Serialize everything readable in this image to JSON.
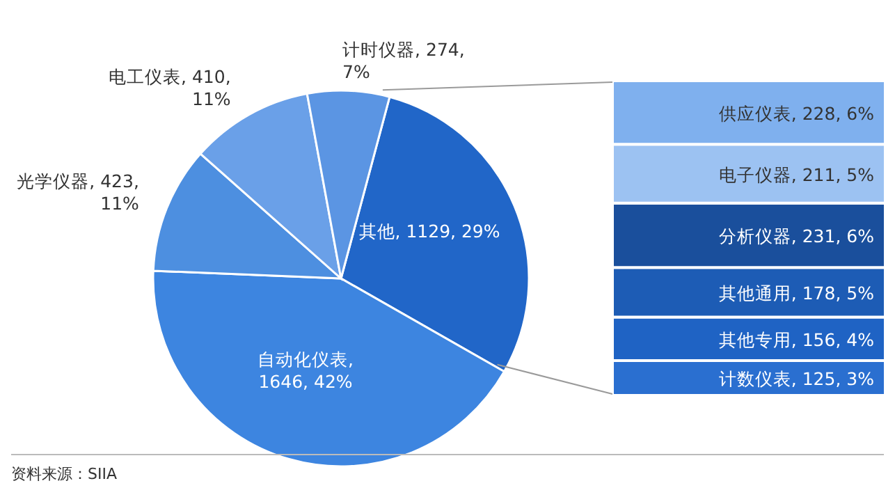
{
  "chart_data": [
    {
      "type": "pie",
      "categories": [
        "其他, 1129, 29%",
        "自动化仪表, 1646, 42%",
        "光学仪器, 423, 11%",
        "电工仪表, 410, 11%",
        "计时仪器, 274, 7%"
      ],
      "values": [
        1129,
        1646,
        423,
        410,
        274
      ],
      "colors": [
        "#2166c8",
        "#3d85e0",
        "#4d8fe0",
        "#6aa0e8",
        "#5b95e3"
      ],
      "legend": false,
      "annotations": [
        "资料来源：SIIA"
      ]
    },
    {
      "type": "bar",
      "stacked": true,
      "categories": [
        null
      ],
      "legend": false,
      "series": [
        {
          "color": "#2a6fd0",
          "values": [
            125
          ],
          "value_labels": [
            "计数仪表, 125, 3%"
          ]
        },
        {
          "color": "#1f63c4",
          "values": [
            156
          ],
          "value_labels": [
            "其他专用, 156, 4%"
          ]
        },
        {
          "color": "#1d5cb5",
          "values": [
            178
          ],
          "value_labels": [
            "其他通用, 178, 5%"
          ]
        },
        {
          "color": "#1a4f9c",
          "values": [
            231
          ],
          "value_labels": [
            "分析仪器, 231, 6%"
          ]
        },
        {
          "color": "#9cc2f2",
          "values": [
            211
          ],
          "value_labels": [
            "电子仪器, 211, 5%"
          ]
        },
        {
          "color": "#7fb0ee",
          "values": [
            228
          ],
          "value_labels": [
            "供应仪表, 228, 6%"
          ]
        }
      ]
    }
  ]
}
